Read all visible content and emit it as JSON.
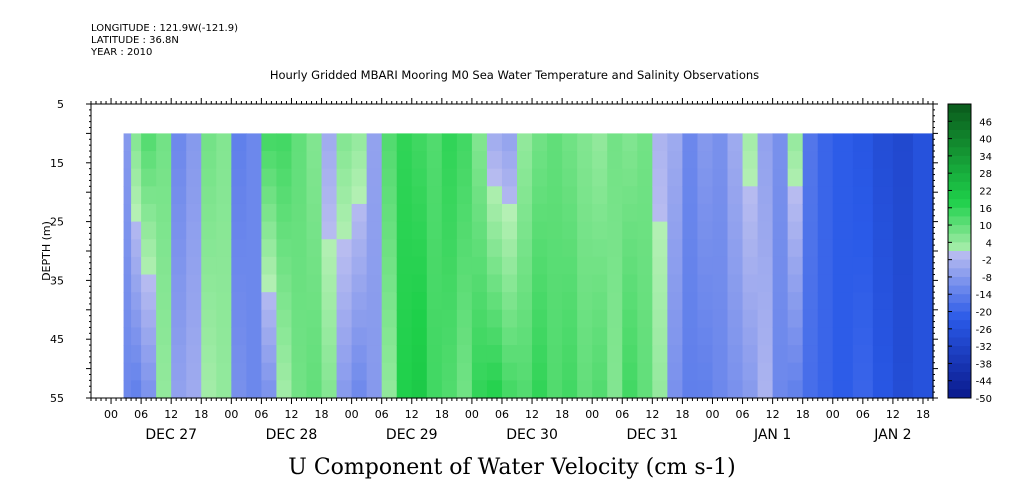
{
  "header": {
    "longitude": "LONGITUDE : 121.9W(-121.9)",
    "latitude": "LATITUDE : 36.8N",
    "year": "YEAR : 2010",
    "title": "Hourly Gridded MBARI Mooring M0 Sea Water Temperature and Salinity Observations"
  },
  "chart_data": {
    "type": "heatmap",
    "title": "U Component of Water Velocity (cm s-1)",
    "ylabel": "DEPTH (m)",
    "ylim": [
      55,
      5
    ],
    "y_ticks": [
      "5",
      "15",
      "25",
      "35",
      "45",
      "55"
    ],
    "data_depth_range": [
      10,
      55
    ],
    "x_hour_ticks": [
      "00",
      "06",
      "12",
      "18",
      "00",
      "06",
      "12",
      "18",
      "00",
      "06",
      "12",
      "18",
      "00",
      "06",
      "12",
      "18",
      "00",
      "06",
      "12",
      "18",
      "00",
      "06",
      "12",
      "18",
      "00",
      "06",
      "12",
      "18"
    ],
    "x_day_labels": [
      "DEC 27",
      "DEC 28",
      "DEC 29",
      "DEC 30",
      "DEC 31",
      "JAN  1",
      "JAN  2"
    ],
    "x_hours_range": [
      -4,
      164
    ],
    "data_hours_range": [
      2.5,
      164
    ],
    "colorbar_labels": [
      "46",
      "40",
      "34",
      "28",
      "22",
      "16",
      "10",
      "4",
      "-2",
      "-8",
      "-14",
      "-20",
      "-26",
      "-32",
      "-38",
      "-44",
      "-50"
    ],
    "colorbar_range": [
      -50,
      52
    ],
    "colors": {
      "neg_dark": "#0a1a8c",
      "neg_mid": "#2a5ae8",
      "neg_light": "#b8bcf0",
      "pos_light": "#b4f0b4",
      "pos_mid": "#1ed04a",
      "pos_dark": "#0a5a1c"
    },
    "columns": [
      {
        "h": 2.5,
        "top": -8,
        "bot": -12
      },
      {
        "h": 4,
        "top": 6,
        "bot": -14
      },
      {
        "h": 6,
        "top": 12,
        "bot": -10
      },
      {
        "h": 9,
        "top": 8,
        "bot": 4
      },
      {
        "h": 12,
        "top": -12,
        "bot": -6
      },
      {
        "h": 15,
        "top": -8,
        "bot": -4
      },
      {
        "h": 18,
        "top": 8,
        "bot": 2
      },
      {
        "h": 21,
        "top": 6,
        "bot": 4
      },
      {
        "h": 24,
        "top": -14,
        "bot": -10
      },
      {
        "h": 27,
        "top": -12,
        "bot": -12
      },
      {
        "h": 30,
        "top": 14,
        "bot": -10
      },
      {
        "h": 33,
        "top": 14,
        "bot": 2
      },
      {
        "h": 36,
        "top": 10,
        "bot": 8
      },
      {
        "h": 39,
        "top": 6,
        "bot": 10
      },
      {
        "h": 42,
        "top": -4,
        "bot": 6
      },
      {
        "h": 45,
        "top": 6,
        "bot": -8
      },
      {
        "h": 48,
        "top": 4,
        "bot": -12
      },
      {
        "h": 51,
        "top": -6,
        "bot": -8
      },
      {
        "h": 54,
        "top": 12,
        "bot": 4
      },
      {
        "h": 57,
        "top": 16,
        "bot": 18
      },
      {
        "h": 60,
        "top": 14,
        "bot": 20
      },
      {
        "h": 63,
        "top": 12,
        "bot": 14
      },
      {
        "h": 66,
        "top": 16,
        "bot": 12
      },
      {
        "h": 69,
        "top": 14,
        "bot": 8
      },
      {
        "h": 72,
        "top": 6,
        "bot": 16
      },
      {
        "h": 75,
        "top": -4,
        "bot": 18
      },
      {
        "h": 78,
        "top": -6,
        "bot": 14
      },
      {
        "h": 81,
        "top": 4,
        "bot": 12
      },
      {
        "h": 84,
        "top": 8,
        "bot": 16
      },
      {
        "h": 87,
        "top": 10,
        "bot": 12
      },
      {
        "h": 90,
        "top": 8,
        "bot": 14
      },
      {
        "h": 93,
        "top": 6,
        "bot": 10
      },
      {
        "h": 96,
        "top": 4,
        "bot": 12
      },
      {
        "h": 99,
        "top": 8,
        "bot": 6
      },
      {
        "h": 102,
        "top": 6,
        "bot": 14
      },
      {
        "h": 105,
        "top": 8,
        "bot": 10
      },
      {
        "h": 108,
        "top": -2,
        "bot": 4
      },
      {
        "h": 111,
        "top": -4,
        "bot": -10
      },
      {
        "h": 114,
        "top": -12,
        "bot": -14
      },
      {
        "h": 117,
        "top": -8,
        "bot": -14
      },
      {
        "h": 120,
        "top": -10,
        "bot": -12
      },
      {
        "h": 123,
        "top": -4,
        "bot": -10
      },
      {
        "h": 126,
        "top": 2,
        "bot": -8
      },
      {
        "h": 129,
        "top": -6,
        "bot": -2
      },
      {
        "h": 132,
        "top": -10,
        "bot": -12
      },
      {
        "h": 135,
        "top": 4,
        "bot": -14
      },
      {
        "h": 138,
        "top": -16,
        "bot": -18
      },
      {
        "h": 141,
        "top": -20,
        "bot": -20
      },
      {
        "h": 144,
        "top": -22,
        "bot": -22
      },
      {
        "h": 148,
        "top": -24,
        "bot": -20
      },
      {
        "h": 152,
        "top": -28,
        "bot": -24
      },
      {
        "h": 156,
        "top": -30,
        "bot": -28
      },
      {
        "h": 160,
        "top": -26,
        "bot": -26
      },
      {
        "h": 164,
        "top": -30,
        "bot": -28
      }
    ]
  }
}
